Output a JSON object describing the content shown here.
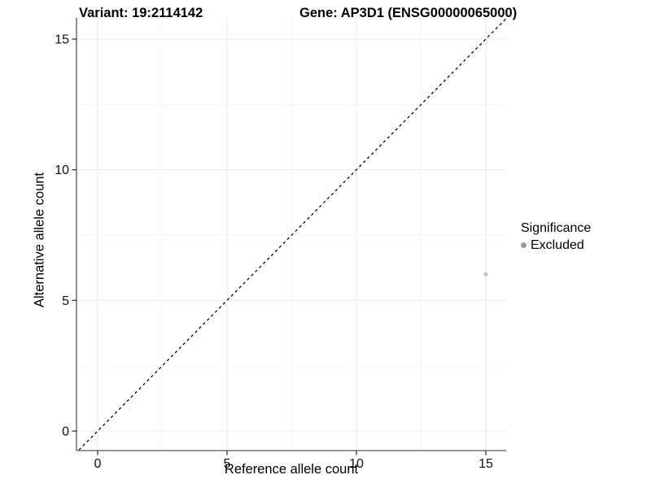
{
  "titles": {
    "variant": "Variant: 19:2114142",
    "gene": "Gene: AP3D1 (ENSG00000065000)"
  },
  "chart_data": {
    "type": "scatter",
    "xlabel": "Reference allele count",
    "ylabel": "Alternative allele count",
    "x_ticks": [
      0,
      5,
      10,
      15
    ],
    "y_ticks": [
      0,
      5,
      10,
      15
    ],
    "x_minor_ticks": [
      2.5,
      7.5,
      12.5
    ],
    "y_minor_ticks": [
      2.5,
      7.5,
      12.5
    ],
    "xlim": [
      -0.79,
      15.79
    ],
    "ylim": [
      -0.72,
      15.72
    ],
    "grid": "major+minor",
    "identity_line": {
      "type": "y=x",
      "style": "dashed",
      "color": "#000000"
    },
    "points": [
      {
        "x": 15,
        "y": 6,
        "series": "Excluded",
        "color": "#c3c3c3"
      }
    ],
    "legend": {
      "position": "right",
      "title": "Significance",
      "items": [
        {
          "label": "Excluded",
          "color": "#9c9c9c"
        }
      ]
    },
    "colors": {
      "major_grid": "#ececec",
      "minor_grid": "#f5f5f5",
      "axis_line": "#757575",
      "tick_mark": "#333333",
      "tick_label": "#111111"
    }
  }
}
